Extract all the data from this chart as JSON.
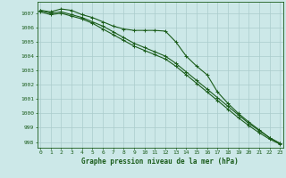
{
  "hours": [
    0,
    1,
    2,
    3,
    4,
    5,
    6,
    7,
    8,
    9,
    10,
    11,
    12,
    13,
    14,
    15,
    16,
    17,
    18,
    19,
    20,
    21,
    22,
    23
  ],
  "line_upper": [
    1007.2,
    1007.1,
    1007.3,
    1007.2,
    1006.9,
    1006.7,
    1006.4,
    1006.1,
    1005.9,
    1005.8,
    1005.8,
    1005.8,
    1005.75,
    1005.0,
    1004.0,
    1003.3,
    1002.7,
    1001.5,
    1000.7,
    1000.0,
    999.4,
    998.85,
    998.3,
    997.9
  ],
  "line_mid": [
    1007.2,
    1007.0,
    1007.1,
    1006.9,
    1006.7,
    1006.4,
    1006.1,
    1005.7,
    1005.3,
    1004.9,
    1004.6,
    1004.3,
    1004.0,
    1003.5,
    1002.9,
    1002.3,
    1001.7,
    1001.1,
    1000.5,
    999.9,
    999.3,
    998.8,
    998.3,
    997.9
  ],
  "line_lower": [
    1007.1,
    1006.9,
    1007.0,
    1006.8,
    1006.6,
    1006.3,
    1005.9,
    1005.5,
    1005.1,
    1004.7,
    1004.4,
    1004.1,
    1003.8,
    1003.3,
    1002.7,
    1002.1,
    1001.5,
    1000.9,
    1000.3,
    999.7,
    999.15,
    998.65,
    998.2,
    997.85
  ],
  "line_color": "#1a5c1a",
  "background_color": "#cce8e8",
  "grid_color": "#aacccc",
  "xlabel": "Graphe pression niveau de la mer (hPa)",
  "ylim": [
    997.6,
    1007.8
  ],
  "yticks": [
    998,
    999,
    1000,
    1001,
    1002,
    1003,
    1004,
    1005,
    1006,
    1007
  ],
  "xlim": [
    -0.3,
    23.3
  ],
  "marker": "+",
  "marker_size": 3,
  "line_width": 0.8
}
